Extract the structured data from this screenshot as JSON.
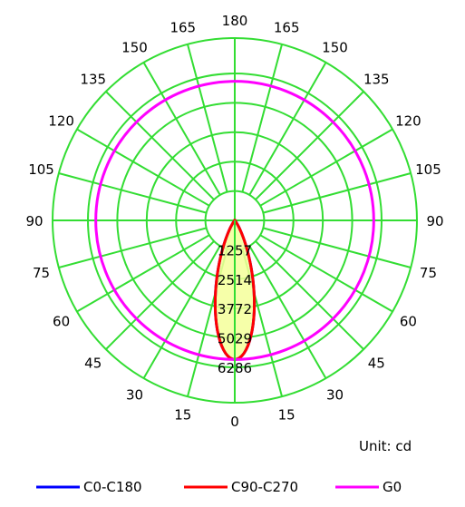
{
  "chart_data": {
    "type": "polar",
    "unit_label": "Unit: cd",
    "radial_axis": {
      "tick_labels": [
        "1257",
        "2514",
        "3772",
        "5029",
        "6286"
      ],
      "ticks": [
        1257,
        2514,
        3772,
        5029,
        6286
      ],
      "max": 7800
    },
    "angular_axis": {
      "labels": [
        "0",
        "15",
        "30",
        "45",
        "60",
        "75",
        "90",
        "105",
        "120",
        "135",
        "150",
        "165",
        "180"
      ],
      "step_deg": 15
    },
    "series": [
      {
        "name": "C0-C180",
        "color": "#0000ff",
        "shape": "narrow_beam",
        "peak_intensity": 5950,
        "beam_exponent": 18
      },
      {
        "name": "C90-C270",
        "color": "#ff0000",
        "shape": "narrow_beam",
        "peak_intensity": 5950,
        "beam_exponent": 18
      },
      {
        "name": "G0",
        "color": "#ff00ff",
        "shape": "circle",
        "intensity": 5950
      }
    ]
  }
}
